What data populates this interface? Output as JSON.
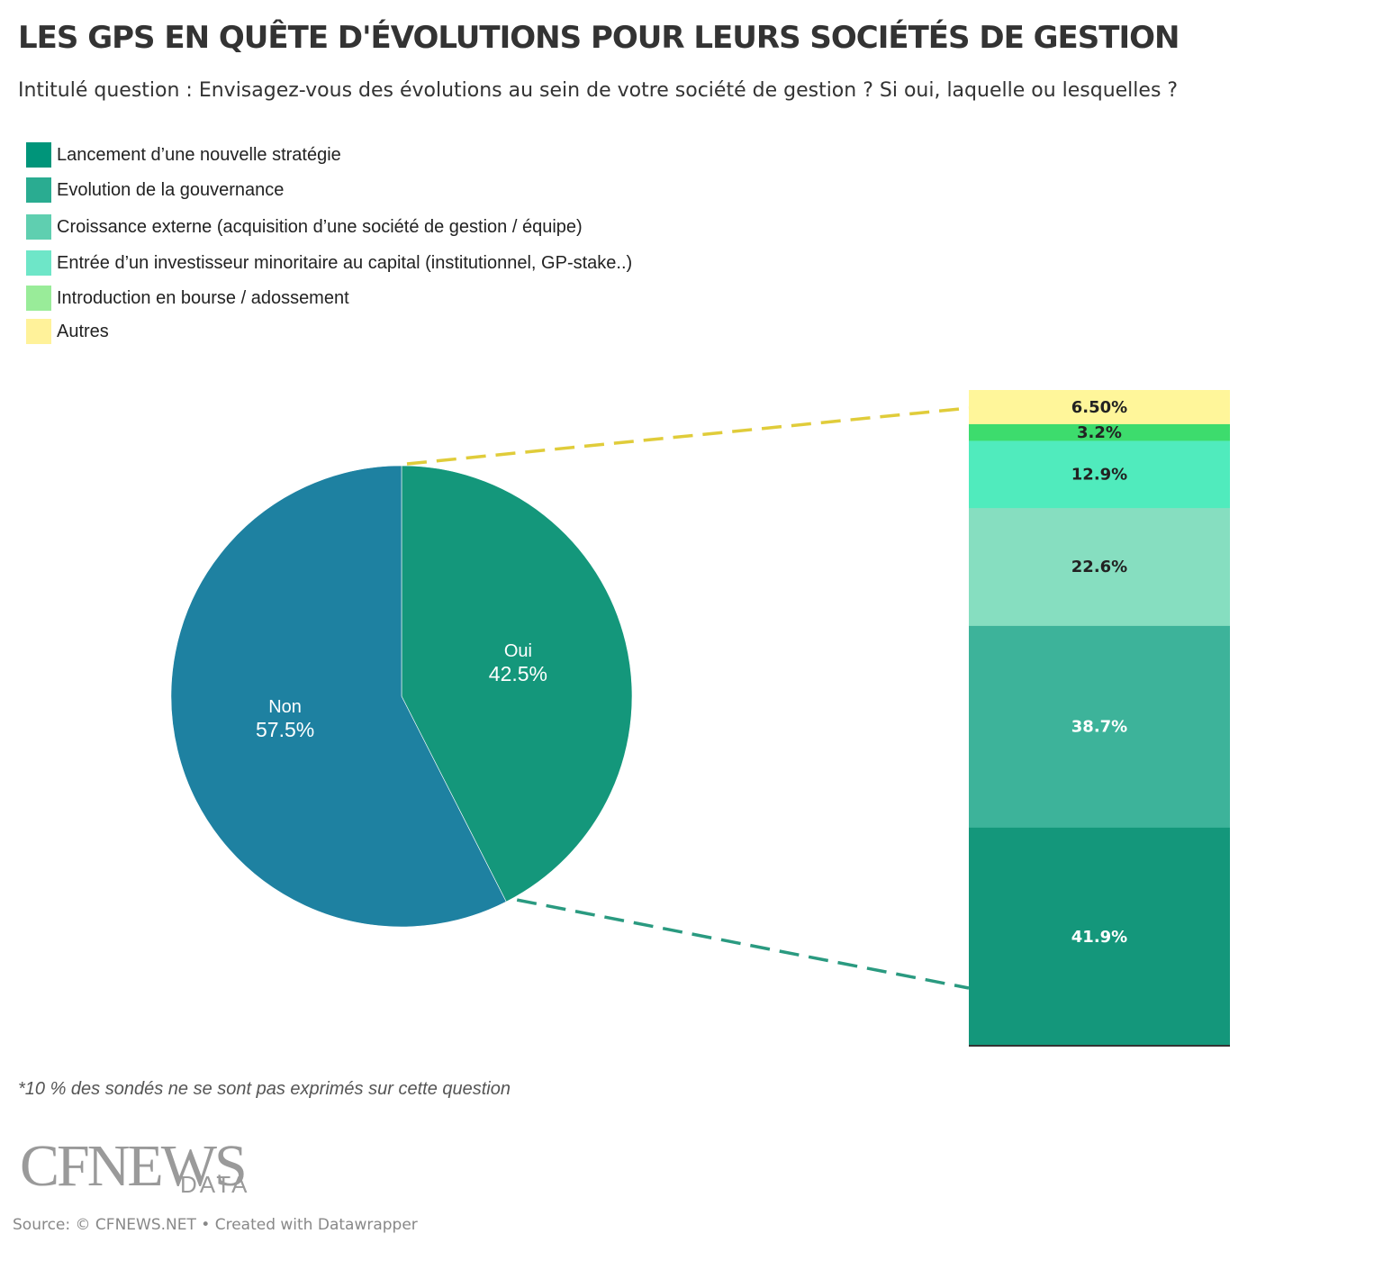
{
  "header": {
    "title": "LES GPS EN QUÊTE D'ÉVOLUTIONS POUR LEURS SOCIÉTÉS DE GESTION",
    "subtitle": "Intitulé question : Envisagez-vous des évolutions au sein de votre société de gestion ? Si oui, laquelle ou lesquelles ?"
  },
  "legend": [
    {
      "label": "Lancement d’une nouvelle stratégie",
      "color": "#00957a"
    },
    {
      "label": "Evolution de la gouvernance",
      "color": "#2aac91"
    },
    {
      "label": "Croissance externe (acquisition d’une société de gestion / équipe)",
      "color": "#5fcfb0"
    },
    {
      "label": "Entrée d’un investisseur minoritaire au capital (institutionnel, GP-stake..)",
      "color": "#6ee6c8"
    },
    {
      "label": "Introduction en bourse / adossement",
      "color": "#99ec99"
    },
    {
      "label": "Autres",
      "color": "#fff29a"
    }
  ],
  "chart_data": [
    {
      "type": "pie",
      "categories": [
        "Oui",
        "Non"
      ],
      "values": [
        42.5,
        57.5
      ],
      "labels": [
        "42.5%",
        "57.5%"
      ],
      "colors": [
        "#14977b",
        "#1e81a1"
      ]
    },
    {
      "type": "bar",
      "stacked": true,
      "categories": [
        "Lancement d’une nouvelle stratégie",
        "Evolution de la gouvernance",
        "Croissance externe (acquisition d’une société de gestion / équipe)",
        "Entrée d’un investisseur minoritaire au capital (institutionnel, GP-stake..)",
        "Introduction en bourse / adossement",
        "Autres"
      ],
      "values": [
        41.9,
        38.7,
        22.6,
        12.9,
        3.2,
        6.5
      ],
      "labels": [
        "41.9%",
        "38.7%",
        "22.6%",
        "12.9%",
        "3.2%",
        "6.50%"
      ],
      "colors": [
        "#14977b",
        "#3db39a",
        "#86dec0",
        "#50ebbd",
        "#3ddc6d",
        "#fff69a"
      ],
      "label_colors": [
        "#ffffff",
        "#ffffff",
        "#222222",
        "#222222",
        "#222222",
        "#222222"
      ],
      "connector_colors": [
        "#e0cc3a",
        "#2a9a80"
      ]
    }
  ],
  "footnote": "*10 % des sondés ne se sont pas exprimés sur cette question",
  "logo": {
    "main": "CFNEWS",
    "sub": "DATA"
  },
  "source": "Source: © CFNEWS.NET • Created with Datawrapper"
}
